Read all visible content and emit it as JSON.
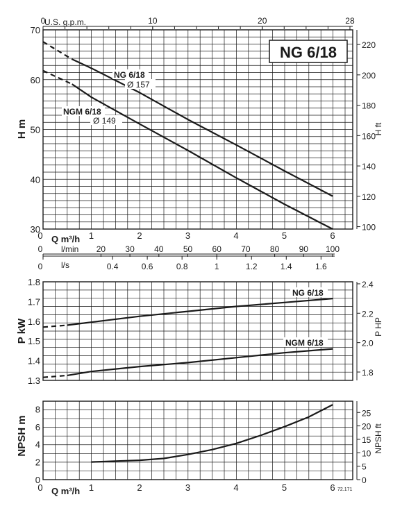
{
  "title": "NG 6/18",
  "code": "72.171",
  "colors": {
    "line": "#1a1a1a",
    "grid": "#1a1a1a",
    "background": "#ffffff"
  },
  "chart_data": [
    {
      "type": "line",
      "panel": "head",
      "title": "NG 6/18",
      "xlabel": "Q m³/h",
      "ylabel_left": "H m",
      "ylabel_right": "H ft",
      "xlim": [
        0,
        6.2
      ],
      "ylim": [
        30,
        70
      ],
      "x_ticks": [
        "0",
        "1",
        "2",
        "3",
        "4",
        "5",
        "6"
      ],
      "y_ticks": [
        "30",
        "40",
        "50",
        "60",
        "70"
      ],
      "y_right_ticks": [
        "100",
        "120",
        "140",
        "160",
        "180",
        "200",
        "220"
      ],
      "top_axis": {
        "label": "U.S. g.p.m.",
        "ticks": [
          "0",
          "10",
          "20",
          "28"
        ]
      },
      "extra_axes": [
        {
          "label": "l/min",
          "ticks": [
            "0",
            "20",
            "30",
            "40",
            "50",
            "60",
            "70",
            "80",
            "90",
            "100"
          ]
        },
        {
          "label": "l/s",
          "ticks": [
            "0",
            "0.4",
            "0.6",
            "0.8",
            "1",
            "1.2",
            "1.4",
            "1.6"
          ]
        }
      ],
      "series": [
        {
          "name": "NG 6/18",
          "sublabel": "Ø 157",
          "dashed": {
            "x": [
              0,
              0.6
            ],
            "y": [
              67.6,
              64.1
            ]
          },
          "x": [
            0.6,
            1,
            2,
            3,
            4,
            5,
            6
          ],
          "y": [
            64.1,
            62.3,
            57.4,
            52.0,
            46.9,
            41.7,
            36.6
          ]
        },
        {
          "name": "NGM 6/18",
          "sublabel": "Ø 149",
          "dashed": {
            "x": [
              0,
              0.6
            ],
            "y": [
              61.8,
              59.1
            ]
          },
          "x": [
            0.6,
            1,
            2,
            3,
            4,
            5,
            6
          ],
          "y": [
            59.1,
            56.5,
            51.1,
            45.8,
            40.3,
            35.0,
            30.0
          ]
        }
      ]
    },
    {
      "type": "line",
      "panel": "power",
      "xlabel": "",
      "ylabel_left": "P kW",
      "ylabel_right": "P HP",
      "ylim": [
        1.3,
        1.8
      ],
      "y_ticks": [
        "1.3",
        "1.4",
        "1.5",
        "1.6",
        "1.7",
        "1.8"
      ],
      "y_right_ticks": [
        "1.8",
        "2.0",
        "2.2",
        "2.4"
      ],
      "series": [
        {
          "name": "NG 6/18",
          "dashed": {
            "x": [
              0,
              0.5
            ],
            "y": [
              1.57,
              1.58
            ]
          },
          "x": [
            0.5,
            1,
            2,
            3,
            4,
            5,
            6
          ],
          "y": [
            1.58,
            1.595,
            1.625,
            1.65,
            1.675,
            1.695,
            1.715
          ]
        },
        {
          "name": "NGM 6/18",
          "dashed": {
            "x": [
              0,
              0.5
            ],
            "y": [
              1.315,
              1.325
            ]
          },
          "x": [
            0.5,
            1,
            2,
            3,
            4,
            5,
            6
          ],
          "y": [
            1.325,
            1.345,
            1.37,
            1.39,
            1.415,
            1.44,
            1.46
          ]
        }
      ]
    },
    {
      "type": "line",
      "panel": "npsh",
      "xlabel": "Q m³/h",
      "ylabel_left": "NPSH m",
      "ylabel_right": "NPSH ft",
      "ylim": [
        0,
        8.9
      ],
      "x_ticks": [
        "0",
        "1",
        "2",
        "3",
        "4",
        "5",
        "6"
      ],
      "y_ticks": [
        "0",
        "2",
        "4",
        "6",
        "8"
      ],
      "y_right_ticks": [
        "0",
        "5",
        "10",
        "15",
        "20",
        "25"
      ],
      "series": [
        {
          "name": "NPSH",
          "x": [
            1,
            1.5,
            2,
            2.5,
            3,
            3.5,
            4,
            4.5,
            5,
            5.5,
            6
          ],
          "y": [
            2.0,
            2.1,
            2.2,
            2.4,
            2.85,
            3.4,
            4.1,
            5.0,
            6.0,
            7.1,
            8.5
          ]
        }
      ]
    }
  ]
}
